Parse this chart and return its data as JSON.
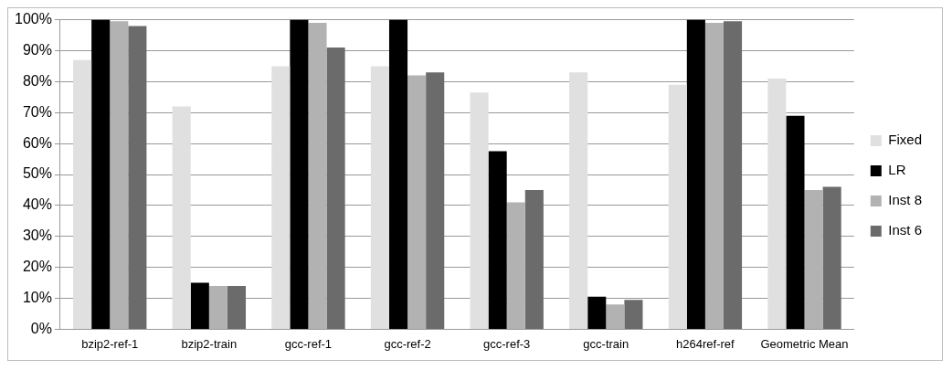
{
  "chart_data": {
    "type": "bar",
    "categories": [
      "bzip2-ref-1",
      "bzip2-train",
      "gcc-ref-1",
      "gcc-ref-2",
      "gcc-ref-3",
      "gcc-train",
      "h264ref-ref",
      "Geometric Mean"
    ],
    "series": [
      {
        "name": "Fixed",
        "color": "#e0e0e0",
        "values": [
          87,
          72,
          85,
          85,
          76.5,
          83,
          79,
          81
        ]
      },
      {
        "name": "LR",
        "color": "#000000",
        "values": [
          100,
          15,
          100,
          100,
          57.5,
          10.5,
          100,
          69
        ]
      },
      {
        "name": "Inst 8",
        "color": "#b2b2b2",
        "values": [
          99.5,
          14,
          99,
          82,
          41,
          8,
          99,
          45
        ]
      },
      {
        "name": "Inst 6",
        "color": "#6b6b6b",
        "values": [
          98,
          14,
          91,
          83,
          45,
          9.5,
          99.5,
          46
        ]
      }
    ],
    "ylim": [
      0,
      100
    ],
    "yticks": [
      {
        "value": 0,
        "label": "0%"
      },
      {
        "value": 10,
        "label": "10%"
      },
      {
        "value": 20,
        "label": "20%"
      },
      {
        "value": 30,
        "label": "30%"
      },
      {
        "value": 40,
        "label": "40%"
      },
      {
        "value": 50,
        "label": "50%"
      },
      {
        "value": 60,
        "label": "60%"
      },
      {
        "value": 70,
        "label": "70%"
      },
      {
        "value": 80,
        "label": "80%"
      },
      {
        "value": 90,
        "label": "90%"
      },
      {
        "value": 100,
        "label": "100%"
      }
    ],
    "grid": "y",
    "legend": "right"
  }
}
